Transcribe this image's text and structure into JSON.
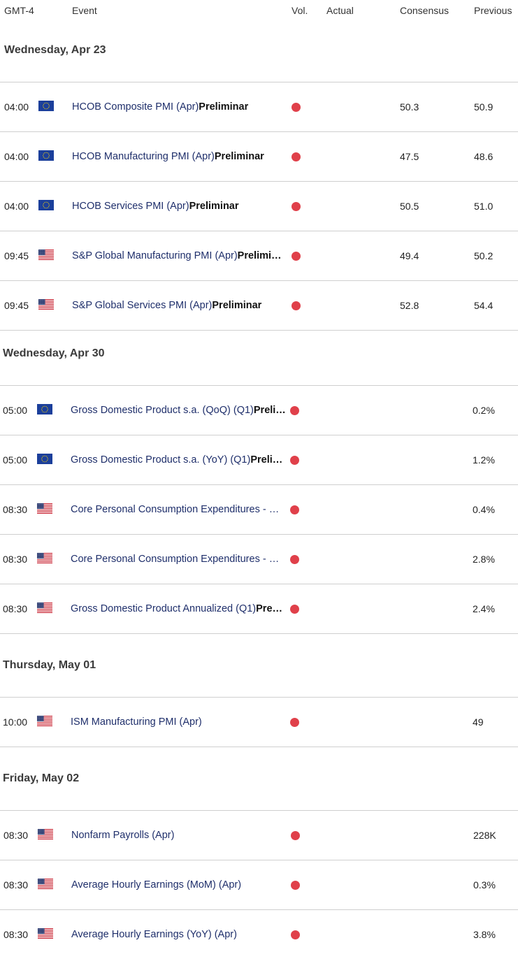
{
  "header": {
    "timezone": "GMT-4",
    "event": "Event",
    "vol": "Vol.",
    "actual": "Actual",
    "consensus": "Consensus",
    "previous": "Previous"
  },
  "colors": {
    "event_text": "#1f2f6b",
    "volatility_high": "#e0404a",
    "divider": "#cfcfcf"
  },
  "sections": [
    {
      "day": "Wednesday, Apr 23",
      "events": [
        {
          "time": "04:00",
          "flag": "eu-flag",
          "name": "HCOB Composite PMI (Apr)",
          "tag": "Preliminar",
          "consensus": "50.3",
          "previous": "50.9"
        },
        {
          "time": "04:00",
          "flag": "eu-flag",
          "name": "HCOB Manufacturing PMI (Apr)",
          "tag": "Preliminar",
          "consensus": "47.5",
          "previous": "48.6"
        },
        {
          "time": "04:00",
          "flag": "eu-flag",
          "name": "HCOB Services PMI (Apr)",
          "tag": "Preliminar",
          "consensus": "50.5",
          "previous": "51.0"
        },
        {
          "time": "09:45",
          "flag": "us-flag",
          "name": "S&P Global Manufacturing PMI (Apr)",
          "tag": "Prelimi…",
          "consensus": "49.4",
          "previous": "50.2"
        },
        {
          "time": "09:45",
          "flag": "us-flag",
          "name": "S&P Global Services PMI (Apr)",
          "tag": "Preliminar",
          "consensus": "52.8",
          "previous": "54.4"
        }
      ]
    },
    {
      "day": "Wednesday, Apr 30",
      "events": [
        {
          "time": "05:00",
          "flag": "eu-flag",
          "name": "Gross Domestic Product s.a. (QoQ) (Q1)",
          "tag": "Preli…",
          "consensus": "",
          "previous": "0.2%"
        },
        {
          "time": "05:00",
          "flag": "eu-flag",
          "name": "Gross Domestic Product s.a. (YoY) (Q1)",
          "tag": "Preli…",
          "consensus": "",
          "previous": "1.2%"
        },
        {
          "time": "08:30",
          "flag": "us-flag",
          "name": "Core Personal Consumption Expenditures - …",
          "tag": "",
          "consensus": "",
          "previous": "0.4%"
        },
        {
          "time": "08:30",
          "flag": "us-flag",
          "name": "Core Personal Consumption Expenditures - …",
          "tag": "",
          "consensus": "",
          "previous": "2.8%"
        },
        {
          "time": "08:30",
          "flag": "us-flag",
          "name": "Gross Domestic Product Annualized (Q1)",
          "tag": "Pre…",
          "consensus": "",
          "previous": "2.4%"
        }
      ]
    },
    {
      "day": "Thursday, May 01",
      "events": [
        {
          "time": "10:00",
          "flag": "us-flag",
          "name": "ISM Manufacturing PMI (Apr)",
          "tag": "",
          "consensus": "",
          "previous": "49"
        }
      ]
    },
    {
      "day": "Friday, May 02",
      "events": [
        {
          "time": "08:30",
          "flag": "us-flag",
          "name": "Nonfarm Payrolls (Apr)",
          "tag": "",
          "consensus": "",
          "previous": "228K"
        },
        {
          "time": "08:30",
          "flag": "us-flag",
          "name": "Average Hourly Earnings (MoM) (Apr)",
          "tag": "",
          "consensus": "",
          "previous": "0.3%"
        },
        {
          "time": "08:30",
          "flag": "us-flag",
          "name": "Average Hourly Earnings (YoY) (Apr)",
          "tag": "",
          "consensus": "",
          "previous": "3.8%"
        }
      ]
    }
  ]
}
